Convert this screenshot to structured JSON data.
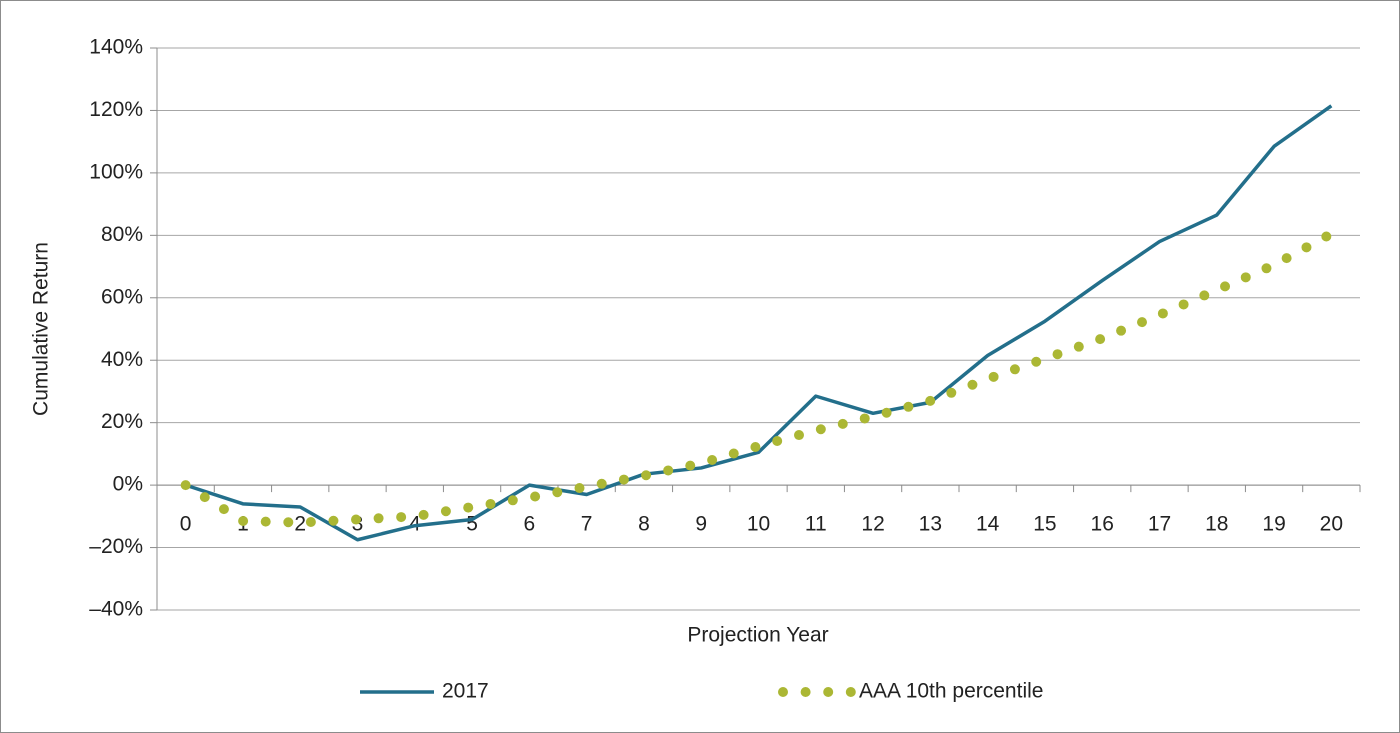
{
  "chart_data": {
    "type": "line",
    "xlabel": "Projection Year",
    "ylabel": "Cumulative Return",
    "categories": [
      "0",
      "1",
      "2",
      "3",
      "4",
      "5",
      "6",
      "7",
      "8",
      "9",
      "10",
      "11",
      "12",
      "13",
      "14",
      "15",
      "16",
      "17",
      "18",
      "19",
      "20"
    ],
    "series": [
      {
        "name": "2017",
        "color": "#236f8b",
        "style": "solid",
        "values": [
          0,
          -6,
          -7,
          -17.5,
          -13,
          -11,
          0,
          -3,
          3.5,
          5.5,
          10.5,
          28.5,
          23,
          26.5,
          41.5,
          52.5,
          65.5,
          78,
          86.5,
          108.5,
          121.5
        ]
      },
      {
        "name": "AAA 10th percentile",
        "color": "#abb734",
        "style": "dotted",
        "values": [
          0,
          -11.5,
          -12,
          -11,
          -10,
          -7,
          -4,
          -0.5,
          3,
          7,
          12.5,
          17.5,
          22,
          27,
          34,
          40.5,
          47,
          54.5,
          62.5,
          70.5,
          80.5
        ]
      }
    ],
    "ylim": [
      -40,
      140
    ],
    "yticks": [
      {
        "value": -40,
        "label": "–40%"
      },
      {
        "value": -20,
        "label": "–20%"
      },
      {
        "value": 0,
        "label": "0%"
      },
      {
        "value": 20,
        "label": "20%"
      },
      {
        "value": 40,
        "label": "40%"
      },
      {
        "value": 60,
        "label": "60%"
      },
      {
        "value": 80,
        "label": "80%"
      },
      {
        "value": 100,
        "label": "100%"
      },
      {
        "value": 120,
        "label": "120%"
      },
      {
        "value": 140,
        "label": "140%"
      }
    ],
    "grid": true,
    "legend": "bottom"
  }
}
